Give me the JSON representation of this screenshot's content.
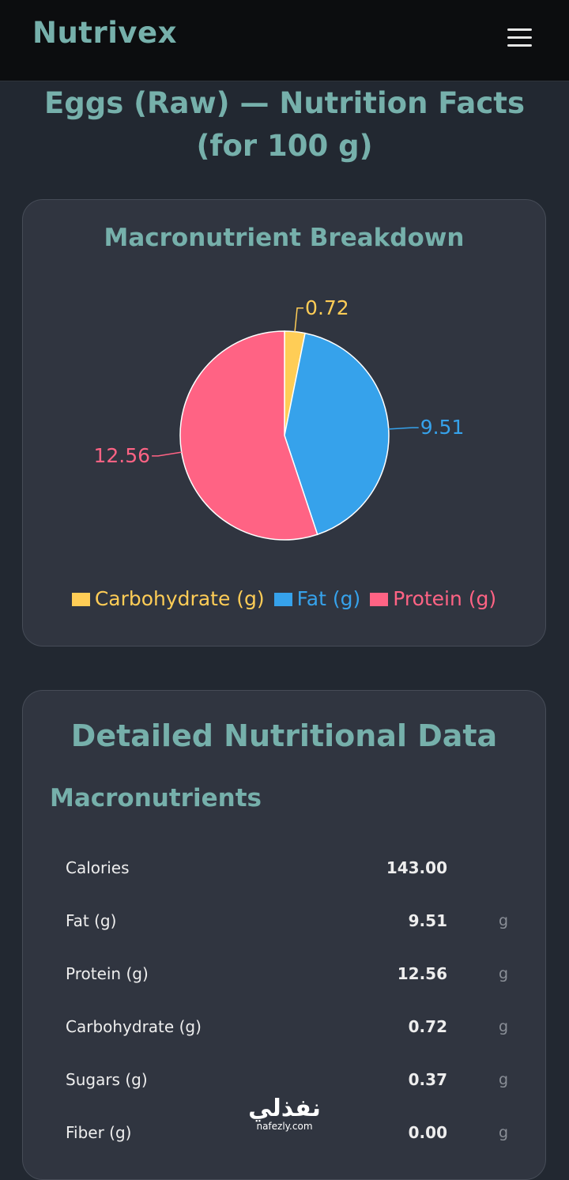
{
  "header": {
    "brand": "Nutrivex",
    "menu_icon": "hamburger-menu-icon"
  },
  "page_title": "Eggs (Raw) — Nutrition Facts (for 100 g)",
  "chart_card": {
    "title": "Macronutrient Breakdown"
  },
  "chart_data": {
    "type": "pie",
    "title": "Macronutrient Breakdown",
    "legend_position": "bottom",
    "categories": [
      "Carbohydrate (g)",
      "Fat (g)",
      "Protein (g)"
    ],
    "values": [
      0.72,
      9.51,
      12.56
    ],
    "labels": [
      "0.72",
      "9.51",
      "12.56"
    ],
    "colors": [
      "#ffcd56",
      "#36a2eb",
      "#ff6384"
    ]
  },
  "detail_card": {
    "title": "Detailed Nutritional Data",
    "section_title": "Macronutrients",
    "rows": [
      {
        "label": "Calories",
        "value": "143.00",
        "unit": ""
      },
      {
        "label": "Fat (g)",
        "value": "9.51",
        "unit": "g"
      },
      {
        "label": "Protein (g)",
        "value": "12.56",
        "unit": "g"
      },
      {
        "label": "Carbohydrate (g)",
        "value": "0.72",
        "unit": "g"
      },
      {
        "label": "Sugars (g)",
        "value": "0.37",
        "unit": "g"
      },
      {
        "label": "Fiber (g)",
        "value": "0.00",
        "unit": "g"
      }
    ]
  },
  "watermark": {
    "main": "نفذلي",
    "sub": "nafezly.com"
  }
}
